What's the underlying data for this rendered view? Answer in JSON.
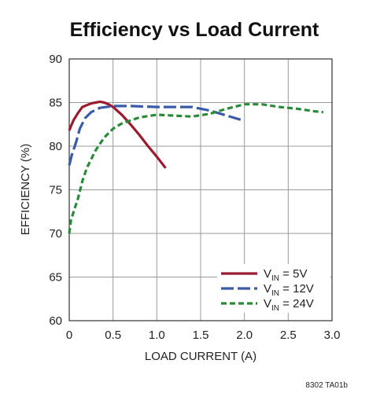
{
  "chart_data": {
    "type": "line",
    "title": "Efficiency vs Load Current",
    "xlabel": "LOAD CURRENT (A)",
    "ylabel": "EFFICIENCY (%)",
    "xlim": [
      0,
      3.0
    ],
    "ylim": [
      60,
      90
    ],
    "x_ticks": [
      "0",
      "0.5",
      "1.0",
      "1.5",
      "2.0",
      "2.5",
      "3.0"
    ],
    "y_ticks": [
      "60",
      "65",
      "70",
      "75",
      "80",
      "85",
      "90"
    ],
    "grid": true,
    "legend_position": "bottom-right",
    "footnote": "8302 TA01b",
    "series": [
      {
        "name": "VIN = 5V",
        "label_main": "V",
        "label_sub": "IN",
        "label_rest": " = 5V",
        "color": "#9b1b30",
        "dash": "solid",
        "points": [
          [
            0.0,
            81.8
          ],
          [
            0.02,
            82.3
          ],
          [
            0.05,
            83.0
          ],
          [
            0.1,
            83.8
          ],
          [
            0.15,
            84.5
          ],
          [
            0.2,
            84.7
          ],
          [
            0.25,
            84.9
          ],
          [
            0.3,
            85.0
          ],
          [
            0.35,
            85.1
          ],
          [
            0.4,
            85.0
          ],
          [
            0.45,
            84.8
          ],
          [
            0.5,
            84.5
          ],
          [
            0.6,
            83.6
          ],
          [
            0.7,
            82.5
          ],
          [
            0.8,
            81.3
          ],
          [
            0.9,
            80.0
          ],
          [
            1.0,
            78.8
          ],
          [
            1.1,
            77.5
          ]
        ]
      },
      {
        "name": "VIN = 12V",
        "label_main": "V",
        "label_sub": "IN",
        "label_rest": " = 12V",
        "color": "#3a5ba8",
        "dash": "long",
        "points": [
          [
            0.0,
            77.8
          ],
          [
            0.03,
            79.0
          ],
          [
            0.08,
            80.5
          ],
          [
            0.12,
            82.0
          ],
          [
            0.18,
            83.2
          ],
          [
            0.25,
            83.9
          ],
          [
            0.35,
            84.4
          ],
          [
            0.5,
            84.6
          ],
          [
            0.7,
            84.6
          ],
          [
            1.0,
            84.5
          ],
          [
            1.2,
            84.5
          ],
          [
            1.4,
            84.5
          ],
          [
            1.6,
            84.1
          ],
          [
            1.8,
            83.5
          ],
          [
            2.0,
            82.9
          ]
        ]
      },
      {
        "name": "VIN = 24V",
        "label_main": "V",
        "label_sub": "IN",
        "label_rest": " = 24V",
        "color": "#2a8a3a",
        "dash": "short",
        "points": [
          [
            0.0,
            70.0
          ],
          [
            0.02,
            71.5
          ],
          [
            0.05,
            72.5
          ],
          [
            0.1,
            74.0
          ],
          [
            0.15,
            76.0
          ],
          [
            0.2,
            77.5
          ],
          [
            0.3,
            79.5
          ],
          [
            0.4,
            81.0
          ],
          [
            0.5,
            82.0
          ],
          [
            0.6,
            82.6
          ],
          [
            0.8,
            83.3
          ],
          [
            1.0,
            83.6
          ],
          [
            1.2,
            83.5
          ],
          [
            1.4,
            83.4
          ],
          [
            1.6,
            83.7
          ],
          [
            1.8,
            84.3
          ],
          [
            2.0,
            84.8
          ],
          [
            2.2,
            84.8
          ],
          [
            2.4,
            84.5
          ],
          [
            2.6,
            84.3
          ],
          [
            2.8,
            84.0
          ],
          [
            2.9,
            83.9
          ]
        ]
      }
    ]
  }
}
